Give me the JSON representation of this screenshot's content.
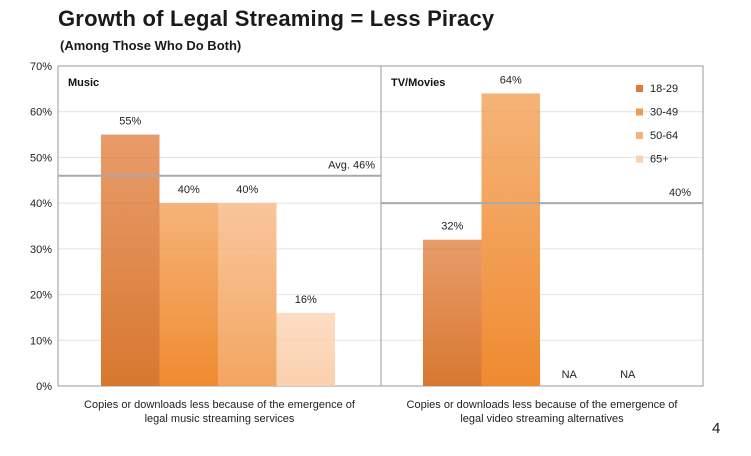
{
  "title": "Growth of Legal Streaming = Less Piracy",
  "subtitle": "(Among Those Who Do Both)",
  "page_number": "4",
  "chart_data": {
    "type": "bar",
    "title": "Growth of Legal Streaming = Less Piracy",
    "subtitle": "(Among Those Who Do Both)",
    "ylim": [
      0,
      70
    ],
    "yticks": [
      0,
      10,
      20,
      30,
      40,
      50,
      60,
      70
    ],
    "ytick_labels": [
      "0%",
      "10%",
      "20%",
      "30%",
      "40%",
      "50%",
      "60%",
      "70%"
    ],
    "series_names": [
      "18-29",
      "30-49",
      "50-64",
      "65+"
    ],
    "series_colors": [
      "#e07b39",
      "#f29a4a",
      "#f7b27a",
      "#fbd2b0"
    ],
    "legend_position": "top-right",
    "grid": true,
    "panels": [
      {
        "title": "Music",
        "category": [
          "Copies or downloads less because of the emergence of",
          "legal music streaming  services"
        ],
        "values": [
          55,
          40,
          40,
          16
        ],
        "labels": [
          "55%",
          "40%",
          "40%",
          "16%"
        ],
        "reference": {
          "value": 46,
          "label": "Avg. 46%"
        }
      },
      {
        "title": "TV/Movies",
        "category": [
          "Copies or downloads less because of the emergence of",
          "legal video streaming alternatives"
        ],
        "values": [
          32,
          64,
          null,
          null
        ],
        "labels": [
          "32%",
          "64%",
          "NA",
          "NA"
        ],
        "reference": {
          "value": 40,
          "label": "40%"
        }
      }
    ]
  }
}
